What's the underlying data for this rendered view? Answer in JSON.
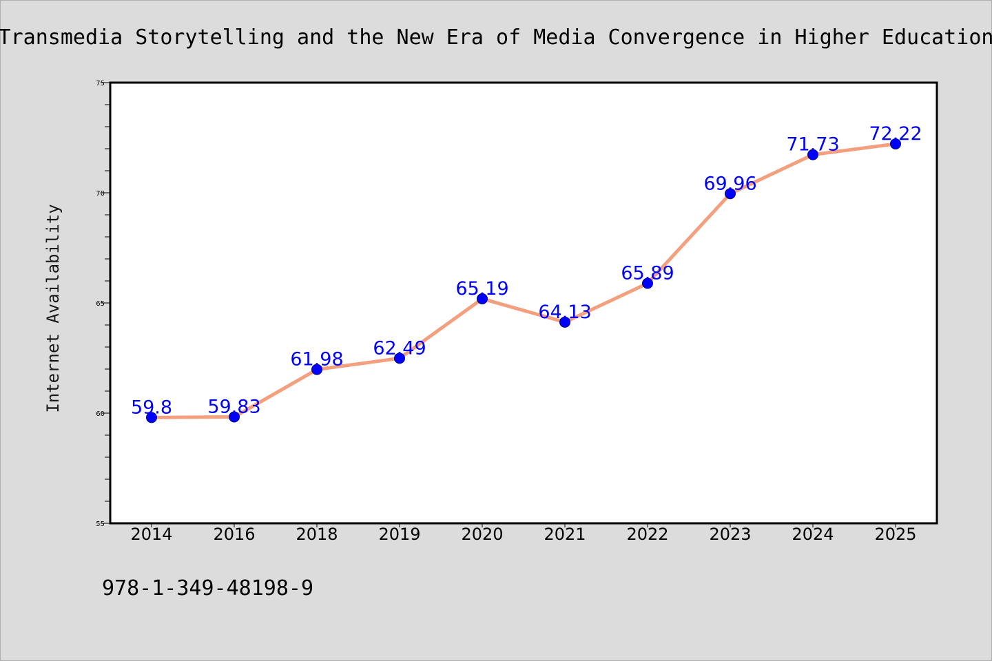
{
  "chart_data": {
    "type": "line",
    "title": "Transmedia Storytelling and the New Era of Media Convergence in Higher Education",
    "xlabel": "",
    "ylabel": "Internet Availability",
    "categories": [
      "2014",
      "2016",
      "2018",
      "2019",
      "2020",
      "2021",
      "2022",
      "2023",
      "2024",
      "2025"
    ],
    "series": [
      {
        "values": [
          59.8,
          59.83,
          61.98,
          62.49,
          65.19,
          64.13,
          65.89,
          69.96,
          71.73,
          72.22
        ],
        "data_labels": [
          "59.8",
          "59.83",
          "61.98",
          "62.49",
          "65.19",
          "64.13",
          "65.89",
          "69.96",
          "71.73",
          "72.22"
        ]
      }
    ],
    "ylim": [
      55,
      75
    ],
    "yticks": [
      "55",
      "60",
      "65",
      "70",
      "75"
    ],
    "grid": false,
    "legend": "none",
    "colors": {
      "line": "#f4a07f",
      "marker": "#0000ff",
      "data_label": "#0000ff",
      "background": "#dcdcdc",
      "plot_background": "#ffffff"
    }
  },
  "annotation": {
    "text": "978-1-349-48198-9"
  }
}
